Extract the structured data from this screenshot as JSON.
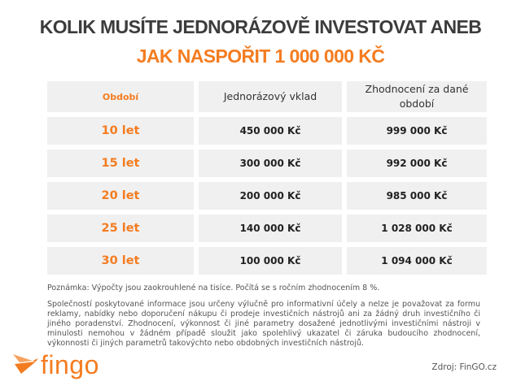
{
  "title_line1": "KOLIK MUSÍTE JEDNORÁZOVĚ INVESTOVAT ANEB",
  "title_line2": "JAK NASPOŘIT 1 000 000 KČ",
  "table": {
    "headers": [
      "Období",
      "Jednorázový vklad",
      "Zhodnocení za dané období"
    ],
    "rows": [
      {
        "period": "10 let",
        "deposit": "450 000 Kč",
        "result": "999 000 Kč"
      },
      {
        "period": "15 let",
        "deposit": "300 000 Kč",
        "result": "992 000 Kč"
      },
      {
        "period": "20 let",
        "deposit": "200 000 Kč",
        "result": "985 000 Kč"
      },
      {
        "period": "25 let",
        "deposit": "140 000 Kč",
        "result": "1 028 000 Kč"
      },
      {
        "period": "30 let",
        "deposit": "100 000 Kč",
        "result": "1 094 000 Kč"
      }
    ]
  },
  "note": "Poznámka: Výpočty jsou zaokrouhlené  na tisíce. Počítá se s ročním zhodnocením 8 %.",
  "disclaimer": "Společností poskytované informace jsou určeny výlučně pro informativní účely a nelze je považovat za formu reklamy, nabídky nebo doporučení nákupu či prodeje investičních nástrojů ani za žádný druh investičního či jiného poradenství. Zhodnocení, výkonnost či jiné parametry dosažené jednotlivými investičními nástroji v minulosti nemohou v žádném případě sloužit jako spolehlivý ukazatel či záruka budoucího zhodnocení, výkonnosti či jiných parametrů takovýchto nebo obdobných investičních nástrojů.",
  "logo": {
    "text": "fingo",
    "icon": "fingo-bird-icon",
    "color": "#f47c20"
  },
  "source": "Zdroj: FinGO.cz",
  "colors": {
    "accent": "#f47c20",
    "cell_bg": "#f0f0f0",
    "title": "#3c3c3c"
  }
}
